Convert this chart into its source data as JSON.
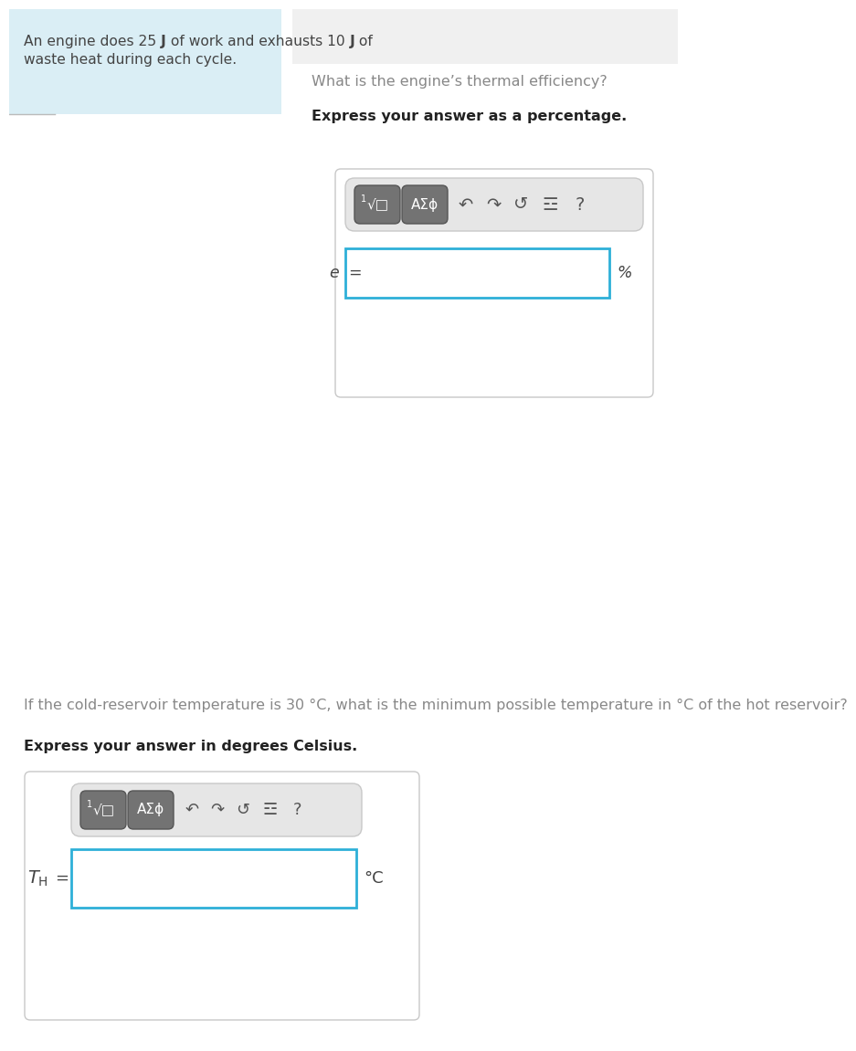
{
  "bg_color": "#ffffff",
  "left_panel_bg": "#daeef5",
  "text_color": "#444444",
  "question_color": "#888888",
  "bold_color": "#222222",
  "toolbar_btn_color": "#737373",
  "toolbar_btn_edge": "#555555",
  "toolbar_bg": "#e6e6e6",
  "toolbar_edge": "#c8c8c8",
  "input_border_color": "#2eb0d8",
  "input_bg": "#ffffff",
  "outer_box_color": "#c8c8c8",
  "divider_color": "#bbbbbb",
  "lp_text_line1a": "An engine does 25 ",
  "lp_text_J1": "J",
  "lp_text_line1b": " of work and exhausts 10 ",
  "lp_text_J2": "J",
  "lp_text_line1c": " of",
  "lp_text_line2": "waste heat during each cycle.",
  "q1_text": "What is the engine’s thermal efficiency?",
  "q1_bold": "Express your answer as a percentage.",
  "q1_label": "e =",
  "q1_unit": "%",
  "q2_text": "If the cold-reservoir temperature is 30 °C, what is the minimum possible temperature in °C of the hot reservoir?",
  "q2_bold": "Express your answer in degrees Celsius.",
  "q2_label_italic": "T",
  "q2_label_sub": "H",
  "q2_label_eq": " =",
  "q2_unit": "°C",
  "btn1_text": "√□",
  "btn1_super": "1",
  "btn2_text": "AΣϕ",
  "icon_undo": "↶",
  "icon_redo": "↷",
  "icon_refresh": "↺",
  "icon_grid": "☲",
  "icon_q": "?"
}
